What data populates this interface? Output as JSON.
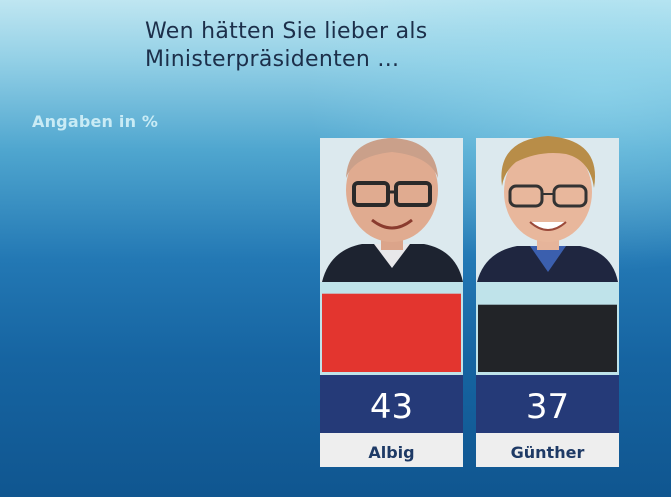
{
  "title": {
    "line1": "Wen hätten Sie lieber als",
    "line2": "Ministerpräsidenten ..."
  },
  "subtitle": "Angaben in %",
  "colors": {
    "Albig": "#e3352f",
    "Günther": "#222428"
  },
  "chart_data": {
    "type": "bar",
    "title": "Wen hätten Sie lieber als Ministerpräsidenten ...",
    "unit_label": "Angaben in %",
    "categories": [
      "Albig",
      "Günther"
    ],
    "values": [
      43,
      37
    ],
    "ylim": [
      0,
      100
    ],
    "grid": false,
    "legend": "none",
    "bar_colors": [
      "#e3352f",
      "#222428"
    ]
  }
}
